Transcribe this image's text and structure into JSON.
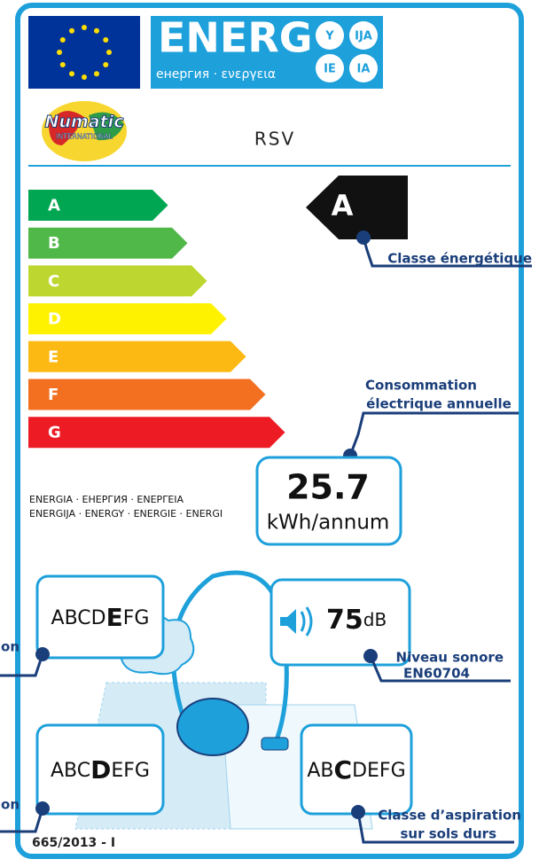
{
  "header": {
    "word": "ENERG",
    "subtitle": "енергия · ενεργεια",
    "suffixes": [
      "Y",
      "IJA",
      "IE",
      "IA"
    ],
    "brand": "Numatic",
    "brand_sub": "INTERNATIONAL",
    "model": "RSV"
  },
  "scale": {
    "classes": [
      "A",
      "B",
      "C",
      "D",
      "E",
      "F",
      "G"
    ],
    "colors": [
      "#00a651",
      "#50b848",
      "#bed630",
      "#fff200",
      "#fdb913",
      "#f37021",
      "#ed1c24"
    ],
    "current": "A"
  },
  "annotations": {
    "energy_class": "Classe énergétique",
    "consumption": [
      "Consommation",
      "électrique annuelle"
    ],
    "noise": [
      "Niveau sonore",
      "EN60704"
    ],
    "carpet_cut": "on",
    "dust_cut": "on",
    "hard_floor": [
      "Classe d’aspiration",
      "sur sols durs"
    ]
  },
  "consumption": {
    "value": 25.7,
    "unit": "kWh/annum"
  },
  "languages": [
    "ENERGIA · ЕНЕРГИЯ · ΕΝΕΡΓΕΙΑ",
    "ENERGIJA · ENERGY · ENERGIE · ENERGI"
  ],
  "dust": [
    "ABCD",
    "E",
    "FG"
  ],
  "noise": {
    "value": 75,
    "unit": "dB"
  },
  "carpet": [
    "ABC",
    "D",
    "EFG"
  ],
  "hard": [
    "AB",
    "C",
    "DEFG"
  ],
  "regulation": "665/2013 - I"
}
